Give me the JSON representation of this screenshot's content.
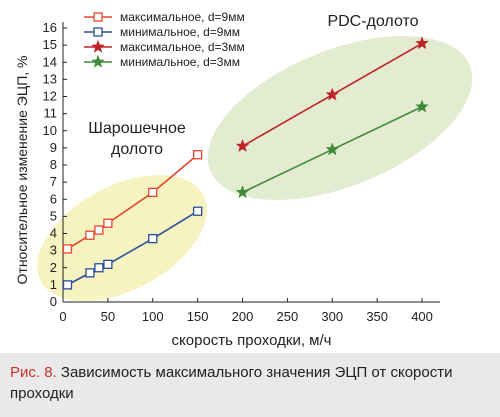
{
  "chart_data": {
    "type": "line",
    "xlabel": "скорость проходки, м/ч",
    "ylabel": "Относительное изменение ЭЦП, %",
    "xlim": [
      0,
      420
    ],
    "ylim": [
      0,
      16
    ],
    "xticks": [
      0,
      50,
      100,
      150,
      200,
      250,
      300,
      350,
      400
    ],
    "yticks": [
      0,
      1,
      2,
      3,
      4,
      5,
      6,
      7,
      8,
      9,
      10,
      11,
      12,
      13,
      14,
      15,
      16
    ],
    "grid": false,
    "legend_position": "top-left",
    "annotations": {
      "roller_cone": [
        "Шарошечное",
        "долото"
      ],
      "pdc": "PDC-долото"
    },
    "series": [
      {
        "name": "максимальное, d=9мм",
        "color": "#e8442c",
        "marker": "square",
        "x": [
          5,
          30,
          40,
          50,
          100,
          150
        ],
        "y": [
          3.1,
          3.9,
          4.2,
          4.6,
          6.4,
          8.6
        ]
      },
      {
        "name": "минимальное, d=9мм",
        "color": "#2a4f9a",
        "marker": "square",
        "x": [
          5,
          30,
          40,
          50,
          100,
          150
        ],
        "y": [
          1.0,
          1.7,
          2.0,
          2.2,
          3.7,
          5.3
        ]
      },
      {
        "name": "максимальное, d=3мм",
        "color": "#c0222a",
        "marker": "star",
        "x": [
          200,
          300,
          400
        ],
        "y": [
          9.1,
          12.1,
          15.1
        ]
      },
      {
        "name": "минимальное, d=3мм",
        "color": "#3f8a3a",
        "marker": "star",
        "x": [
          200,
          300,
          400
        ],
        "y": [
          6.4,
          8.9,
          11.4
        ]
      }
    ]
  },
  "caption": {
    "label": "Рис. 8.",
    "text": " Зависимость максимального значения ЭЦП от скорости проходки"
  },
  "colors": {
    "roller_cone_region": "#f6f3c0",
    "pdc_region": "#e3ecd0",
    "axis": "#222222",
    "caption_band": "#e9e9ea",
    "caption_label": "#c8322a"
  }
}
